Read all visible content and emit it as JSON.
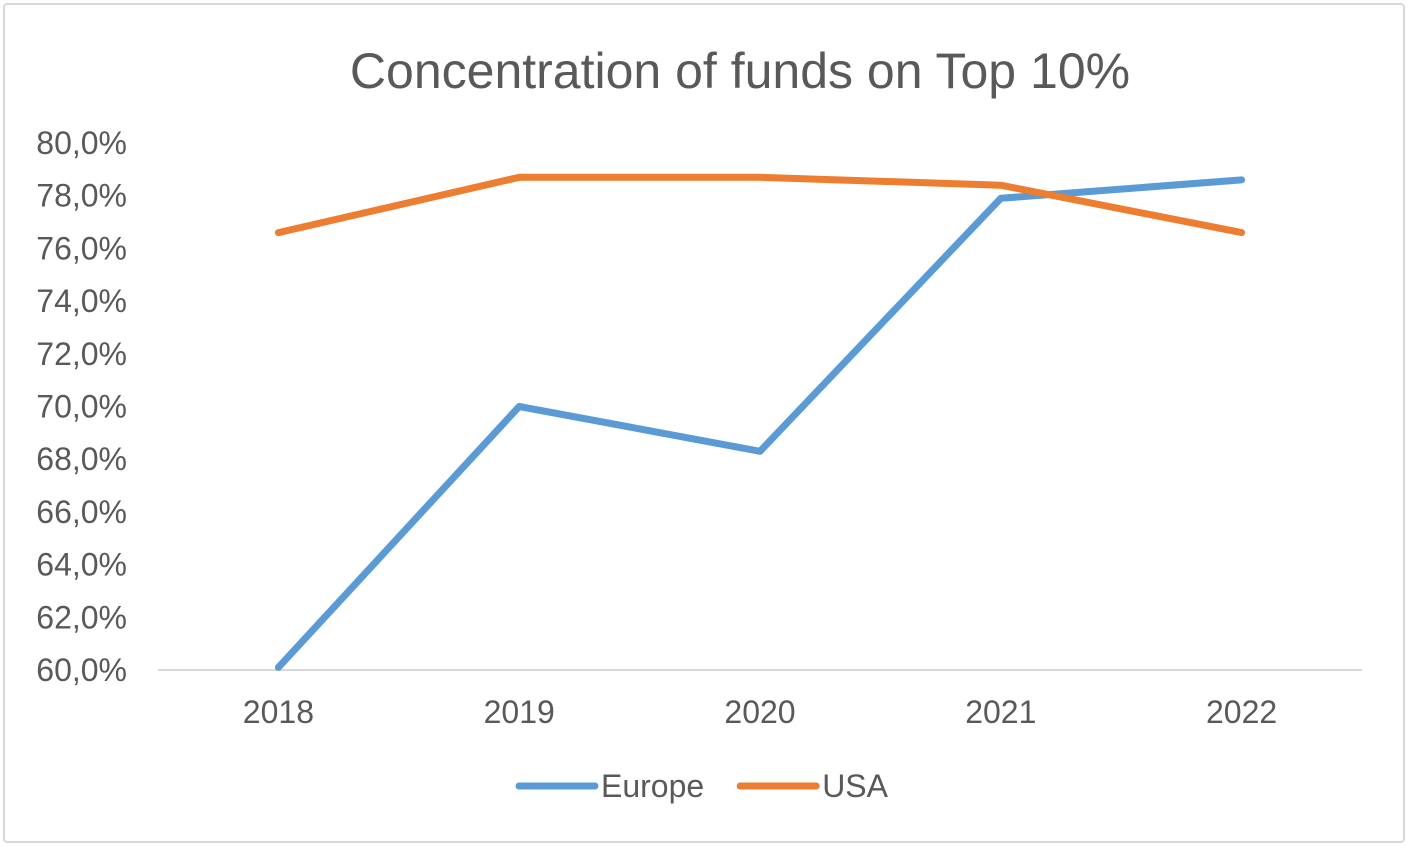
{
  "chart_data": {
    "type": "line",
    "title": "Concentration of funds on Top 10%",
    "xlabel": "",
    "ylabel": "",
    "categories": [
      "2018",
      "2019",
      "2020",
      "2021",
      "2022"
    ],
    "ylim": [
      60,
      80
    ],
    "y_step": 2,
    "y_tick_labels": [
      "60,0%",
      "62,0%",
      "64,0%",
      "66,0%",
      "68,0%",
      "70,0%",
      "72,0%",
      "74,0%",
      "76,0%",
      "78,0%",
      "80,0%"
    ],
    "grid": false,
    "legend_position": "bottom",
    "series": [
      {
        "name": "Europe",
        "color": "#5b9bd5",
        "values": [
          60.1,
          70.0,
          68.3,
          77.9,
          78.6
        ]
      },
      {
        "name": "USA",
        "color": "#ed7d31",
        "values": [
          76.6,
          78.7,
          78.7,
          78.4,
          76.6
        ]
      }
    ]
  }
}
